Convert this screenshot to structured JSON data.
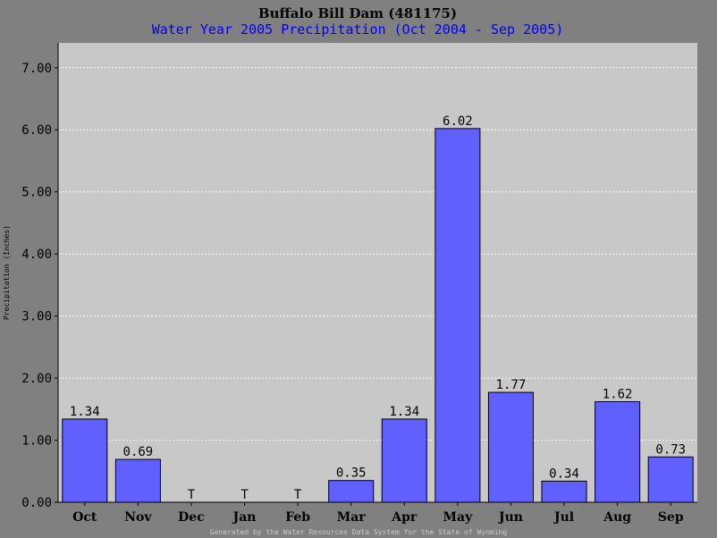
{
  "chart_data": {
    "type": "bar",
    "title": "Buffalo Bill Dam (481175)",
    "subtitle": "Water Year 2005 Precipitation (Oct 2004 - Sep 2005)",
    "ylabel": "Precipitation (Inches)",
    "xlabel": "",
    "categories": [
      "Oct",
      "Nov",
      "Dec",
      "Jan",
      "Feb",
      "Mar",
      "Apr",
      "May",
      "Jun",
      "Jul",
      "Aug",
      "Sep"
    ],
    "values": [
      1.34,
      0.69,
      0,
      0,
      0,
      0.35,
      1.34,
      6.02,
      1.77,
      0.34,
      1.62,
      0.73
    ],
    "data_labels": [
      "1.34",
      "0.69",
      "T",
      "T",
      "T",
      "0.35",
      "1.34",
      "6.02",
      "1.77",
      "0.34",
      "1.62",
      "0.73"
    ],
    "ylim": [
      0,
      7.4
    ],
    "yticks": [
      0,
      1,
      2,
      3,
      4,
      5,
      6,
      7
    ],
    "ytick_labels": [
      "0.00",
      "1.00",
      "2.00",
      "3.00",
      "4.00",
      "5.00",
      "6.00",
      "7.00"
    ],
    "grid": true,
    "legend": "none",
    "colors": {
      "background": "#808080",
      "plot_area": "#c8c8c8",
      "bar_fill": "#6060ff",
      "bar_stroke": "#000000",
      "grid": "#ffffff",
      "title": "#000000",
      "subtitle": "#0000ff"
    }
  },
  "footer": "Generated by the Water Resources Data System for the State of Wyoming"
}
